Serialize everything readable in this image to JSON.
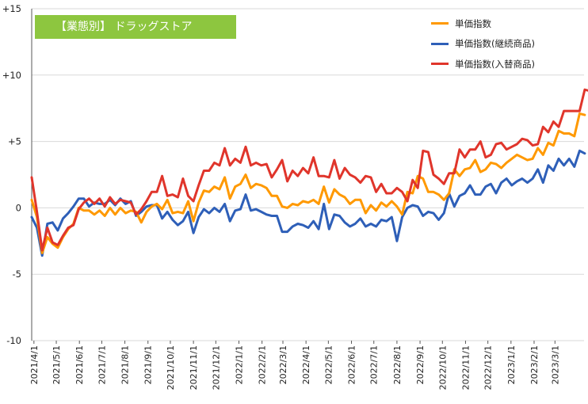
{
  "title": "【業態別】 ドラッグストア",
  "colors": {
    "title_bg": "#8dc63f",
    "grid": "#d9d9d9",
    "axis": "#595959"
  },
  "chart_data": {
    "type": "line",
    "title": "【業態別】 ドラッグストア",
    "ylim": [
      -10,
      15
    ],
    "yticks": [
      {
        "value": 15,
        "label": "+15"
      },
      {
        "value": 10,
        "label": "+10"
      },
      {
        "value": 5,
        "label": "+5"
      },
      {
        "value": 0,
        "label": "0"
      },
      {
        "value": -5,
        "label": "-5"
      },
      {
        "value": -10,
        "label": "-10"
      }
    ],
    "grid": "horizontal",
    "legend_position": "top-right",
    "x_range": [
      "2021-03-29",
      "2023-04-09"
    ],
    "x_tick_labels": [
      "2021/4/1",
      "2021/5/1",
      "2021/6/1",
      "2021/7/1",
      "2021/8/1",
      "2021/9/1",
      "2021/10/1",
      "2021/11/1",
      "2021/12/1",
      "2022/1/1",
      "2022/2/1",
      "2022/3/1",
      "2022/4/1",
      "2022/5/1",
      "2022/6/1",
      "2022/7/1",
      "2022/8/1",
      "2022/9/1",
      "2022/10/1",
      "2022/11/1",
      "2022/12/1",
      "2023/1/1",
      "2023/2/1",
      "2023/3/1"
    ],
    "x_start": "2021-03-29",
    "x_step_days": 7,
    "series": [
      {
        "name": "単価指数",
        "color": "#ff9900",
        "values": [
          0.6,
          -0.7,
          -3.4,
          -2.2,
          -2.7,
          -3.0,
          -2.2,
          -1.6,
          -1.2,
          0.0,
          -0.2,
          -0.2,
          -0.5,
          -0.2,
          -0.6,
          0.0,
          -0.5,
          0.0,
          -0.4,
          -0.2,
          -0.3,
          -1.1,
          -0.3,
          0.1,
          0.3,
          -0.1,
          0.6,
          -0.4,
          -0.3,
          -0.4,
          0.5,
          -1.0,
          0.4,
          1.3,
          1.2,
          1.6,
          1.4,
          2.3,
          0.7,
          1.6,
          1.8,
          2.5,
          1.5,
          1.8,
          1.7,
          1.5,
          0.9,
          0.9,
          0.1,
          0.0,
          0.3,
          0.2,
          0.5,
          0.4,
          0.6,
          0.3,
          1.6,
          0.4,
          1.4,
          1.0,
          0.8,
          0.3,
          0.6,
          0.6,
          -0.4,
          0.2,
          -0.2,
          0.4,
          0.1,
          0.5,
          0.1,
          -0.5,
          1.2,
          1.1,
          2.4,
          2.2,
          1.2,
          1.2,
          1.0,
          0.6,
          1.1,
          2.9,
          2.4,
          2.9,
          3.0,
          3.6,
          2.7,
          2.9,
          3.4,
          3.3,
          3.0,
          3.4,
          3.7,
          4.0,
          3.8,
          3.6,
          3.7,
          4.5,
          4.0,
          4.9,
          4.7,
          5.8,
          5.6,
          5.6,
          5.4,
          7.1,
          7.0
        ]
      },
      {
        "name": "単価指数(継続商品)",
        "color": "#2e5fb8",
        "values": [
          -0.7,
          -1.5,
          -3.6,
          -1.2,
          -1.1,
          -1.7,
          -0.8,
          -0.4,
          0.1,
          0.7,
          0.7,
          0.1,
          0.4,
          0.3,
          0.3,
          0.6,
          0.2,
          0.7,
          0.3,
          0.5,
          -0.6,
          -0.3,
          0.1,
          0.2,
          0.2,
          -0.8,
          -0.3,
          -0.9,
          -1.3,
          -1.0,
          -0.3,
          -1.9,
          -0.7,
          -0.1,
          -0.4,
          0.0,
          -0.3,
          0.3,
          -1.0,
          -0.2,
          -0.1,
          1.0,
          -0.2,
          -0.1,
          -0.3,
          -0.5,
          -0.6,
          -0.6,
          -1.8,
          -1.8,
          -1.4,
          -1.2,
          -1.3,
          -1.5,
          -1.0,
          -1.6,
          0.3,
          -1.6,
          -0.5,
          -0.6,
          -1.1,
          -1.4,
          -1.2,
          -0.8,
          -1.4,
          -1.2,
          -1.4,
          -0.9,
          -1.0,
          -0.7,
          -2.5,
          -0.7,
          0.0,
          0.2,
          0.1,
          -0.6,
          -0.3,
          -0.4,
          -0.9,
          -0.4,
          1.1,
          0.1,
          0.9,
          1.1,
          1.7,
          1.0,
          1.0,
          1.6,
          1.8,
          1.1,
          1.9,
          2.2,
          1.7,
          2.0,
          2.2,
          1.9,
          2.2,
          2.9,
          1.9,
          3.2,
          2.8,
          3.7,
          3.2,
          3.7,
          3.1,
          4.3,
          4.1
        ]
      },
      {
        "name": "単価指数(入替商品)",
        "color": "#e0352b",
        "values": [
          2.3,
          -0.3,
          -3.2,
          -1.5,
          -2.6,
          -2.8,
          -2.1,
          -1.5,
          -1.3,
          -0.1,
          0.4,
          0.7,
          0.3,
          0.7,
          0.1,
          0.8,
          0.3,
          0.6,
          0.5,
          0.4,
          -0.5,
          -0.1,
          0.5,
          1.2,
          1.2,
          2.4,
          0.9,
          1.0,
          0.8,
          2.2,
          0.9,
          0.5,
          1.7,
          2.8,
          2.8,
          3.4,
          3.2,
          4.5,
          3.2,
          3.7,
          3.4,
          4.6,
          3.2,
          3.4,
          3.2,
          3.3,
          2.3,
          2.9,
          3.6,
          2.0,
          2.8,
          2.4,
          3.0,
          2.6,
          3.8,
          2.4,
          2.4,
          2.3,
          3.6,
          2.2,
          3.0,
          2.5,
          2.3,
          1.9,
          2.4,
          2.3,
          1.2,
          1.8,
          1.1,
          1.1,
          1.5,
          1.2,
          0.5,
          2.1,
          1.5,
          4.3,
          4.2,
          2.5,
          2.2,
          1.8,
          2.6,
          2.6,
          4.4,
          3.8,
          4.4,
          4.4,
          5.0,
          3.8,
          4.0,
          4.8,
          4.9,
          4.4,
          4.6,
          4.8,
          5.2,
          5.1,
          4.7,
          4.8,
          6.1,
          5.7,
          6.5,
          6.1,
          7.3,
          7.3,
          7.3,
          7.3,
          8.9,
          8.8
        ]
      }
    ]
  }
}
